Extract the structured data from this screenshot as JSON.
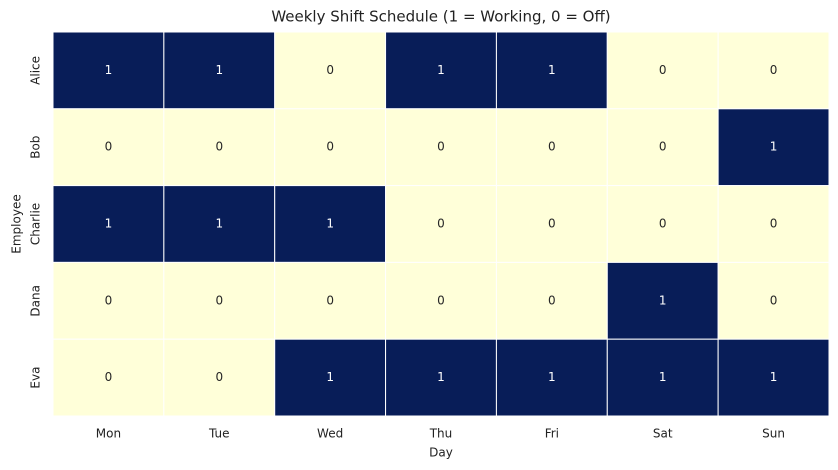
{
  "chart_data": {
    "type": "heatmap",
    "title": "Weekly Shift Schedule (1 = Working, 0 = Off)",
    "x_label": "Day",
    "y_label": "Employee",
    "columns": [
      "Mon",
      "Tue",
      "Wed",
      "Thu",
      "Fri",
      "Sat",
      "Sun"
    ],
    "rows": [
      "Alice",
      "Bob",
      "Charlie",
      "Dana",
      "Eva"
    ],
    "values": [
      [
        1,
        1,
        0,
        1,
        1,
        0,
        0
      ],
      [
        0,
        0,
        0,
        0,
        0,
        0,
        1
      ],
      [
        1,
        1,
        1,
        0,
        0,
        0,
        0
      ],
      [
        0,
        0,
        0,
        0,
        0,
        1,
        0
      ],
      [
        0,
        0,
        1,
        1,
        1,
        1,
        1
      ]
    ],
    "vlim": [
      0,
      1
    ],
    "colormap": [
      "#ffffd9",
      "#081d58"
    ]
  }
}
